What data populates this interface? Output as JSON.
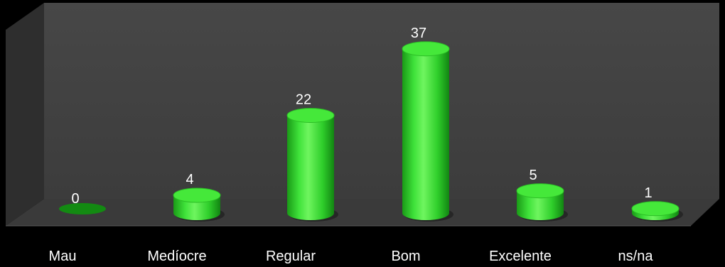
{
  "chart_data": {
    "type": "bar",
    "style": "3d-cylinder",
    "categories": [
      "Mau",
      "Medíocre",
      "Regular",
      "Bom",
      "Excelente",
      "ns/na"
    ],
    "values": [
      0,
      4,
      22,
      37,
      5,
      1
    ],
    "ylim": [
      0,
      40
    ],
    "grid": false,
    "legend": "none",
    "colors": {
      "background": "#000000",
      "wall": "#404040",
      "floor": "#3a3a3a",
      "bar_light": "#5cf04c",
      "bar_mid": "#2ed42a",
      "bar_dark": "#138a12",
      "bar_top": "#45e83a",
      "labels": "#ffffff"
    }
  }
}
